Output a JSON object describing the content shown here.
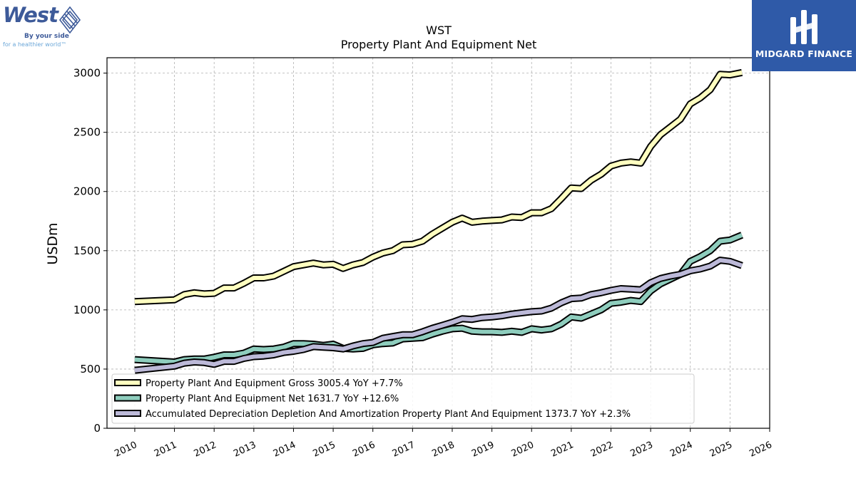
{
  "logos": {
    "west": {
      "name": "West",
      "tagline1": "By your side",
      "tagline2": "for a healthier world™"
    },
    "midgard": {
      "name": "MIDGARD FINANCE"
    }
  },
  "colors": {
    "gross": "#ffffc0",
    "net": "#8ecdbd",
    "accum": "#bcb9d8",
    "outline": "#000000",
    "grid": "#b0b0b0"
  },
  "chart_data": {
    "type": "line",
    "title": "WST",
    "subtitle": "Property Plant And Equipment Net",
    "xlabel": "",
    "ylabel": "USDm",
    "xlim": [
      2009.3,
      2026.0
    ],
    "ylim": [
      0,
      3130
    ],
    "x_ticks": [
      "2010",
      "2011",
      "2012",
      "2013",
      "2014",
      "2015",
      "2016",
      "2017",
      "2018",
      "2019",
      "2020",
      "2021",
      "2022",
      "2023",
      "2024",
      "2025",
      "2026"
    ],
    "y_ticks": [
      0,
      500,
      1000,
      1500,
      2000,
      2500,
      3000
    ],
    "grid": true,
    "legend_position": "lower-left",
    "series": [
      {
        "name": "Property Plant And Equipment Gross",
        "legend_label": "Property Plant And Equipment Gross  3005.4 YoY +7.7%",
        "color_key": "gross",
        "points": [
          [
            2010.0,
            1070
          ],
          [
            2011.0,
            1085
          ],
          [
            2011.25,
            1130
          ],
          [
            2011.5,
            1145
          ],
          [
            2011.75,
            1135
          ],
          [
            2012.0,
            1140
          ],
          [
            2012.25,
            1185
          ],
          [
            2012.5,
            1185
          ],
          [
            2012.75,
            1225
          ],
          [
            2013.0,
            1270
          ],
          [
            2013.25,
            1270
          ],
          [
            2013.5,
            1285
          ],
          [
            2013.75,
            1325
          ],
          [
            2014.0,
            1365
          ],
          [
            2014.25,
            1380
          ],
          [
            2014.5,
            1395
          ],
          [
            2014.75,
            1380
          ],
          [
            2015.0,
            1385
          ],
          [
            2015.25,
            1350
          ],
          [
            2015.5,
            1380
          ],
          [
            2015.75,
            1400
          ],
          [
            2016.0,
            1445
          ],
          [
            2016.25,
            1480
          ],
          [
            2016.5,
            1500
          ],
          [
            2016.75,
            1550
          ],
          [
            2017.0,
            1555
          ],
          [
            2017.25,
            1580
          ],
          [
            2017.5,
            1640
          ],
          [
            2017.75,
            1690
          ],
          [
            2018.0,
            1740
          ],
          [
            2018.25,
            1775
          ],
          [
            2018.5,
            1740
          ],
          [
            2018.75,
            1750
          ],
          [
            2019.0,
            1755
          ],
          [
            2019.25,
            1760
          ],
          [
            2019.5,
            1785
          ],
          [
            2019.75,
            1780
          ],
          [
            2020.0,
            1820
          ],
          [
            2020.25,
            1820
          ],
          [
            2020.5,
            1855
          ],
          [
            2020.75,
            1940
          ],
          [
            2021.0,
            2030
          ],
          [
            2021.25,
            2025
          ],
          [
            2021.5,
            2095
          ],
          [
            2021.75,
            2145
          ],
          [
            2022.0,
            2215
          ],
          [
            2022.25,
            2240
          ],
          [
            2022.5,
            2250
          ],
          [
            2022.75,
            2240
          ],
          [
            2023.0,
            2380
          ],
          [
            2023.25,
            2480
          ],
          [
            2023.5,
            2545
          ],
          [
            2023.75,
            2610
          ],
          [
            2024.0,
            2740
          ],
          [
            2024.25,
            2790
          ],
          [
            2024.5,
            2860
          ],
          [
            2024.75,
            2990
          ],
          [
            2025.0,
            2985
          ],
          [
            2025.3,
            3005
          ]
        ]
      },
      {
        "name": "Property Plant And Equipment Net",
        "legend_label": "Property Plant And Equipment Net  1631.7 YoY +12.6%",
        "color_key": "net",
        "points": [
          [
            2010.0,
            580
          ],
          [
            2011.0,
            560
          ],
          [
            2011.25,
            580
          ],
          [
            2011.5,
            585
          ],
          [
            2011.75,
            585
          ],
          [
            2012.0,
            600
          ],
          [
            2012.25,
            620
          ],
          [
            2012.5,
            620
          ],
          [
            2012.75,
            635
          ],
          [
            2013.0,
            670
          ],
          [
            2013.25,
            665
          ],
          [
            2013.5,
            670
          ],
          [
            2013.75,
            685
          ],
          [
            2014.0,
            715
          ],
          [
            2014.25,
            715
          ],
          [
            2014.5,
            710
          ],
          [
            2014.75,
            700
          ],
          [
            2015.0,
            710
          ],
          [
            2015.25,
            675
          ],
          [
            2015.5,
            670
          ],
          [
            2015.75,
            675
          ],
          [
            2016.0,
            705
          ],
          [
            2016.25,
            715
          ],
          [
            2016.5,
            720
          ],
          [
            2016.75,
            755
          ],
          [
            2017.0,
            760
          ],
          [
            2017.25,
            765
          ],
          [
            2017.5,
            795
          ],
          [
            2017.75,
            820
          ],
          [
            2018.0,
            840
          ],
          [
            2018.25,
            845
          ],
          [
            2018.5,
            820
          ],
          [
            2018.75,
            815
          ],
          [
            2019.0,
            815
          ],
          [
            2019.25,
            810
          ],
          [
            2019.5,
            820
          ],
          [
            2019.75,
            810
          ],
          [
            2020.0,
            840
          ],
          [
            2020.25,
            830
          ],
          [
            2020.5,
            840
          ],
          [
            2020.75,
            880
          ],
          [
            2021.0,
            940
          ],
          [
            2021.25,
            930
          ],
          [
            2021.5,
            965
          ],
          [
            2021.75,
            1000
          ],
          [
            2022.0,
            1055
          ],
          [
            2022.25,
            1065
          ],
          [
            2022.5,
            1080
          ],
          [
            2022.75,
            1070
          ],
          [
            2023.0,
            1160
          ],
          [
            2023.25,
            1220
          ],
          [
            2023.5,
            1260
          ],
          [
            2023.75,
            1300
          ],
          [
            2024.0,
            1410
          ],
          [
            2024.25,
            1450
          ],
          [
            2024.5,
            1500
          ],
          [
            2024.75,
            1580
          ],
          [
            2025.0,
            1590
          ],
          [
            2025.3,
            1632
          ]
        ]
      },
      {
        "name": "Accumulated Depreciation Depletion And Amortization Property Plant And Equipment",
        "legend_label": "Accumulated Depreciation Depletion And Amortization Property Plant And Equipment  1373.7 YoY +2.3%",
        "color_key": "accum",
        "points": [
          [
            2010.0,
            490
          ],
          [
            2011.0,
            525
          ],
          [
            2011.25,
            550
          ],
          [
            2011.5,
            560
          ],
          [
            2011.75,
            555
          ],
          [
            2012.0,
            540
          ],
          [
            2012.25,
            565
          ],
          [
            2012.5,
            565
          ],
          [
            2012.75,
            590
          ],
          [
            2013.0,
            605
          ],
          [
            2013.25,
            610
          ],
          [
            2013.5,
            620
          ],
          [
            2013.75,
            640
          ],
          [
            2014.0,
            650
          ],
          [
            2014.25,
            665
          ],
          [
            2014.5,
            690
          ],
          [
            2014.75,
            685
          ],
          [
            2015.0,
            680
          ],
          [
            2015.25,
            670
          ],
          [
            2015.5,
            695
          ],
          [
            2015.75,
            715
          ],
          [
            2016.0,
            725
          ],
          [
            2016.25,
            760
          ],
          [
            2016.5,
            775
          ],
          [
            2016.75,
            790
          ],
          [
            2017.0,
            790
          ],
          [
            2017.25,
            815
          ],
          [
            2017.5,
            845
          ],
          [
            2017.75,
            870
          ],
          [
            2018.0,
            895
          ],
          [
            2018.25,
            925
          ],
          [
            2018.5,
            920
          ],
          [
            2018.75,
            935
          ],
          [
            2019.0,
            940
          ],
          [
            2019.25,
            950
          ],
          [
            2019.5,
            965
          ],
          [
            2019.75,
            975
          ],
          [
            2020.0,
            985
          ],
          [
            2020.25,
            990
          ],
          [
            2020.5,
            1015
          ],
          [
            2020.75,
            1060
          ],
          [
            2021.0,
            1095
          ],
          [
            2021.25,
            1100
          ],
          [
            2021.5,
            1130
          ],
          [
            2021.75,
            1145
          ],
          [
            2022.0,
            1165
          ],
          [
            2022.25,
            1180
          ],
          [
            2022.5,
            1175
          ],
          [
            2022.75,
            1170
          ],
          [
            2023.0,
            1230
          ],
          [
            2023.25,
            1265
          ],
          [
            2023.5,
            1285
          ],
          [
            2023.75,
            1300
          ],
          [
            2024.0,
            1330
          ],
          [
            2024.25,
            1345
          ],
          [
            2024.5,
            1370
          ],
          [
            2024.75,
            1420
          ],
          [
            2025.0,
            1410
          ],
          [
            2025.3,
            1374
          ]
        ]
      }
    ]
  }
}
